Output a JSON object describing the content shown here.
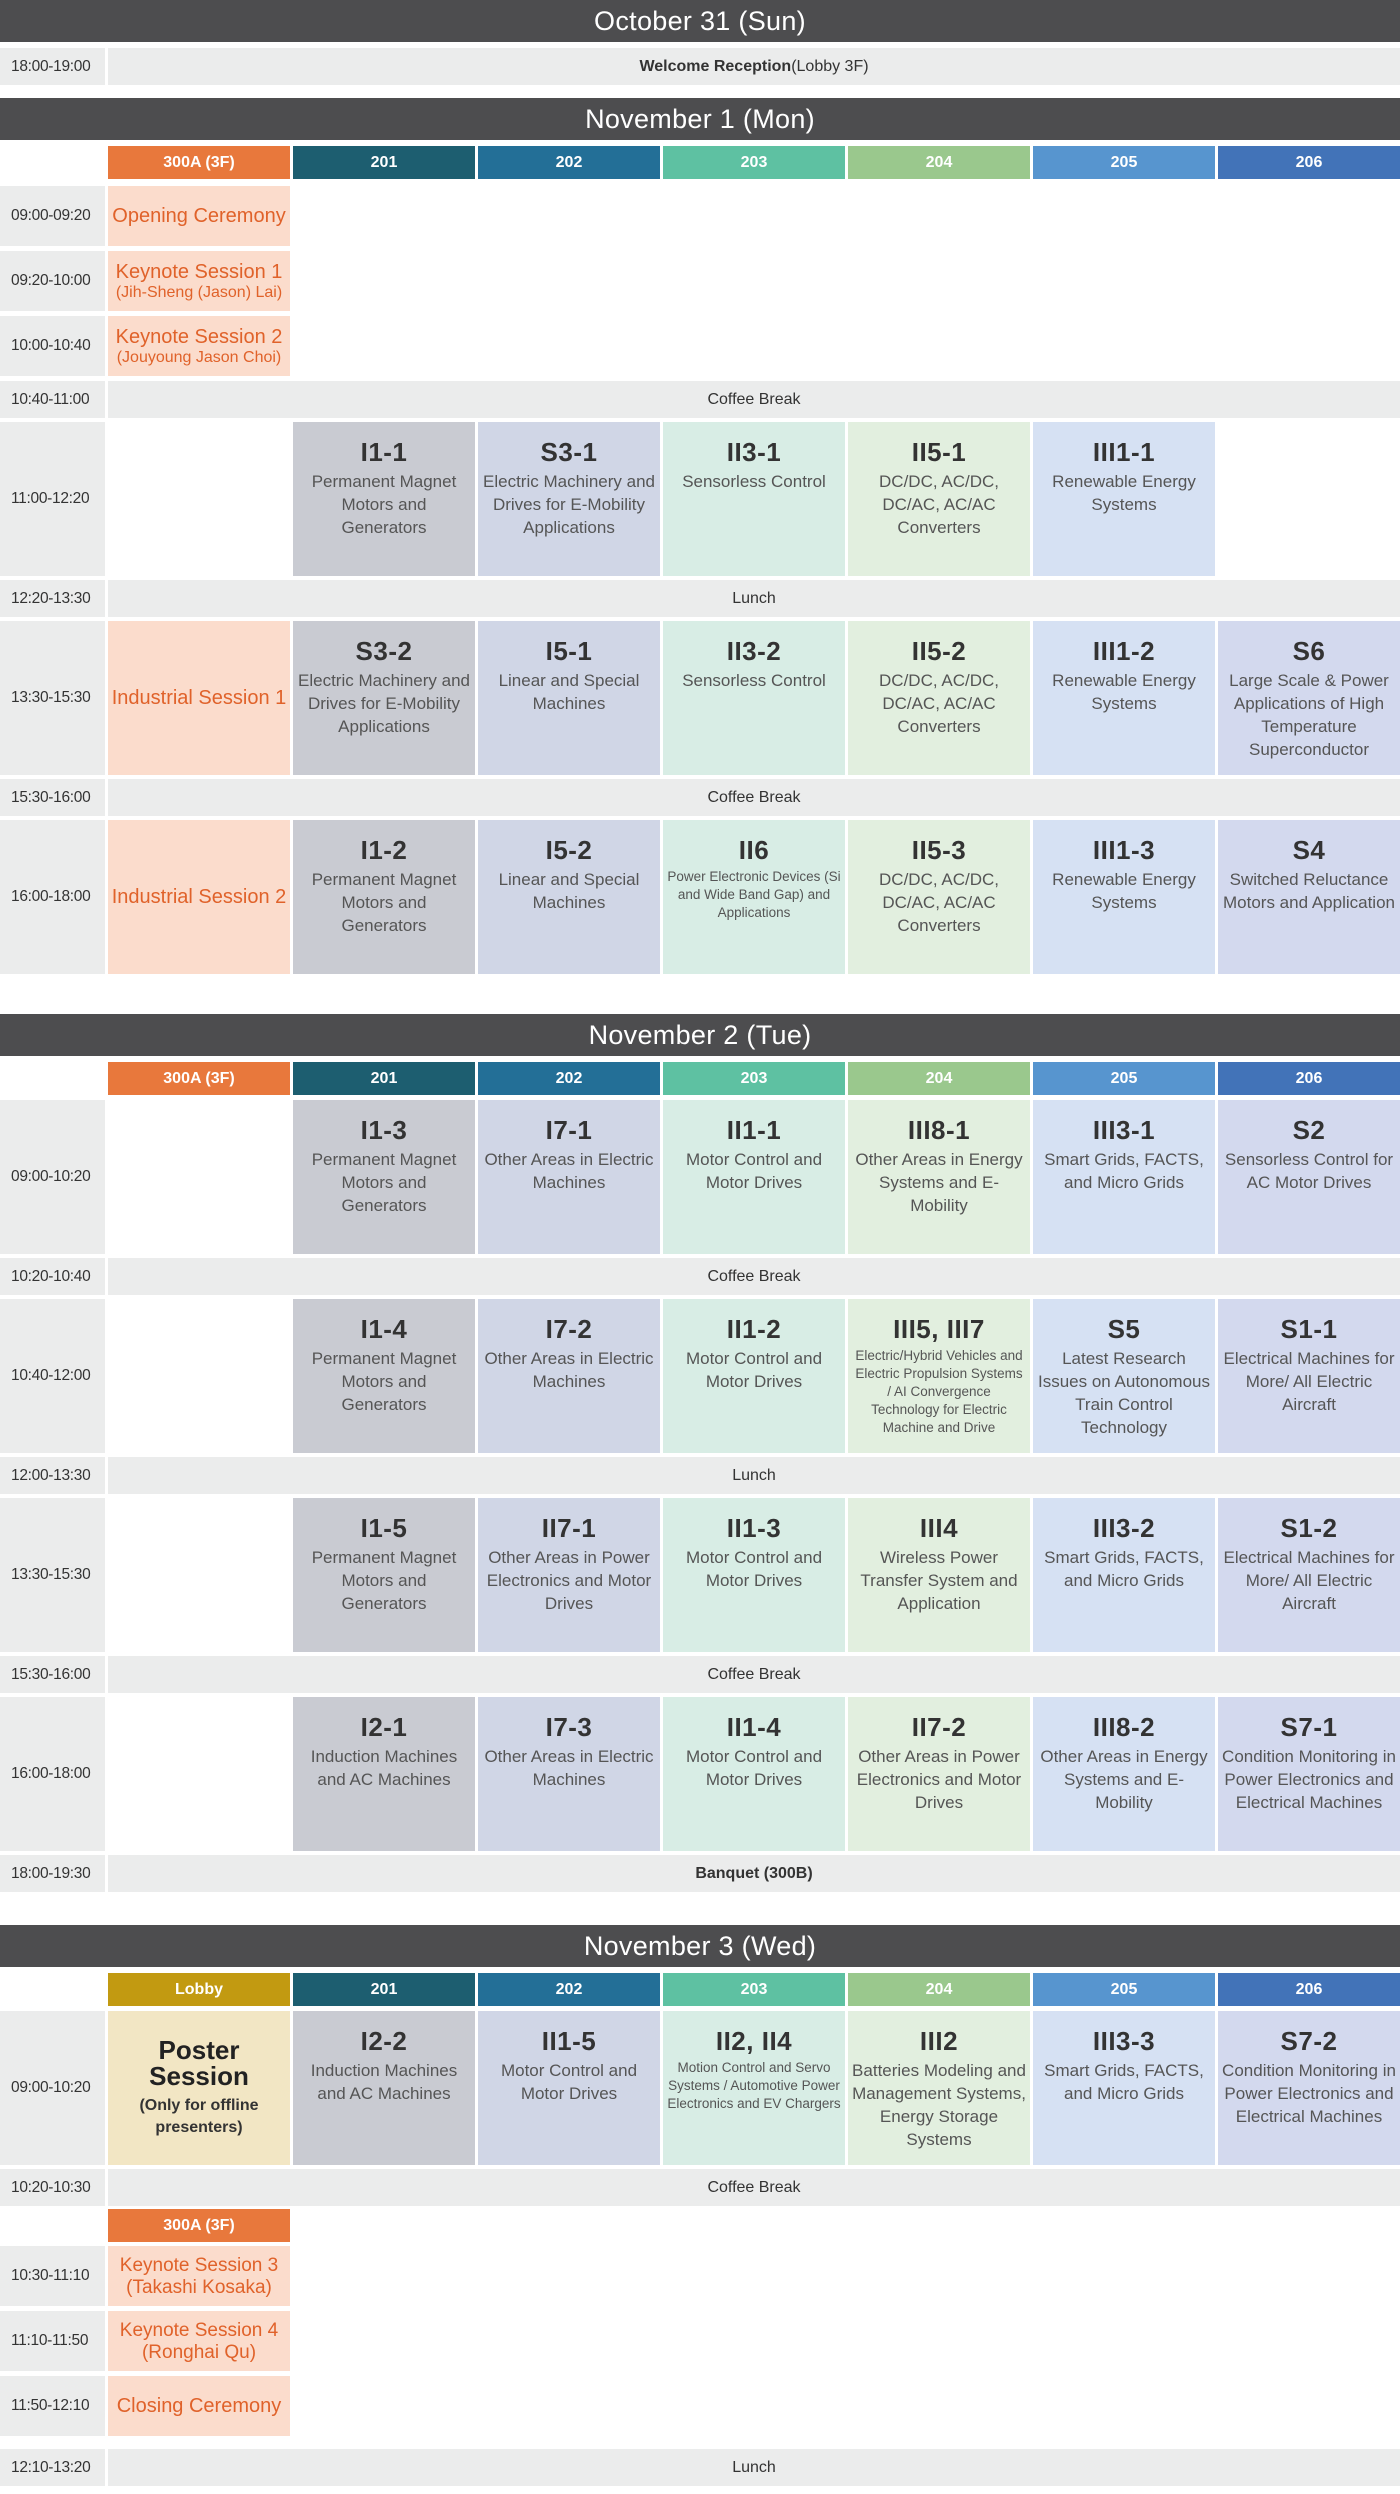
{
  "colors": {
    "day_header": "#4d4d4f",
    "hall": "#e8783c",
    "room201": "#1d5e70",
    "room202": "#236f97",
    "room203": "#5ec1a2",
    "room204": "#9ac88d",
    "room205": "#5795cf",
    "room206": "#4273b8",
    "lobby": "#c29a11"
  },
  "oct31": {
    "title": "October 31 (Sun)",
    "time": "18:00-19:00",
    "event_bold": "Welcome Reception",
    "event_rest": " (Lobby 3F)"
  },
  "nov1": {
    "title": "November 1 (Mon)",
    "rooms": [
      "300A (3F)",
      "201",
      "202",
      "203",
      "204",
      "205",
      "206"
    ],
    "t1": "09:00-09:20",
    "opening": "Opening Ceremony",
    "t2": "09:20-10:00",
    "keynote1": "Keynote Session 1",
    "keynote1_speaker": "(Jih-Sheng (Jason) Lai)",
    "t3": "10:00-10:40",
    "keynote2": "Keynote Session 2",
    "keynote2_speaker": "(Jouyoung Jason Choi)",
    "t4": "10:40-11:00",
    "coffee1": "Coffee Break",
    "t5": "11:00-12:20",
    "s5": [
      {
        "code": "I1-1",
        "desc": "Permanent Magnet Motors and Generators"
      },
      {
        "code": "S3-1",
        "desc": "Electric Machinery and Drives for E-Mobility Applications"
      },
      {
        "code": "II3-1",
        "desc": "Sensorless Control"
      },
      {
        "code": "II5-1",
        "desc": "DC/DC, AC/DC, DC/AC, AC/AC Converters"
      },
      {
        "code": "III1-1",
        "desc": "Renewable Energy Systems"
      }
    ],
    "t6": "12:20-13:30",
    "lunch": "Lunch",
    "t7": "13:30-15:30",
    "industrial1": "Industrial Session 1",
    "s7": [
      {
        "code": "S3-2",
        "desc": "Electric Machinery and Drives for E-Mobility Applications"
      },
      {
        "code": "I5-1",
        "desc": "Linear and Special Machines"
      },
      {
        "code": "II3-2",
        "desc": "Sensorless Control"
      },
      {
        "code": "II5-2",
        "desc": "DC/DC, AC/DC, DC/AC, AC/AC Converters"
      },
      {
        "code": "III1-2",
        "desc": "Renewable Energy Systems"
      },
      {
        "code": "S6",
        "desc": "Large Scale & Power Applications of High Temperature Superconductor"
      }
    ],
    "t8": "15:30-16:00",
    "coffee2": "Coffee Break",
    "t9": "16:00-18:00",
    "industrial2": "Industrial Session 2",
    "s9": [
      {
        "code": "I1-2",
        "desc": "Permanent Magnet Motors and Generators"
      },
      {
        "code": "I5-2",
        "desc": "Linear and Special Machines"
      },
      {
        "code": "II6",
        "desc": "Power Electronic Devices (Si and Wide Band Gap) and Applications"
      },
      {
        "code": "II5-3",
        "desc": "DC/DC, AC/DC, DC/AC, AC/AC Converters"
      },
      {
        "code": "III1-3",
        "desc": "Renewable Energy Systems"
      },
      {
        "code": "S4",
        "desc": "Switched Reluctance Motors and Application"
      }
    ]
  },
  "nov2": {
    "title": "November 2 (Tue)",
    "rooms": [
      "300A (3F)",
      "201",
      "202",
      "203",
      "204",
      "205",
      "206"
    ],
    "t1": "09:00-10:20",
    "s1": [
      {
        "code": "I1-3",
        "desc": "Permanent Magnet Motors and Generators"
      },
      {
        "code": "I7-1",
        "desc": "Other Areas in Electric Machines"
      },
      {
        "code": "II1-1",
        "desc": "Motor Control and Motor Drives"
      },
      {
        "code": "III8-1",
        "desc": "Other Areas in Energy Systems and E-Mobility"
      },
      {
        "code": "III3-1",
        "desc": "Smart Grids, FACTS, and Micro Grids"
      },
      {
        "code": "S2",
        "desc": "Sensorless Control for AC Motor Drives"
      }
    ],
    "t2": "10:20-10:40",
    "coffee1": "Coffee Break",
    "t3": "10:40-12:00",
    "s3": [
      {
        "code": "I1-4",
        "desc": "Permanent Magnet Motors and Generators"
      },
      {
        "code": "I7-2",
        "desc": "Other Areas in Electric Machines"
      },
      {
        "code": "II1-2",
        "desc": "Motor Control and Motor Drives"
      },
      {
        "code": "III5, III7",
        "desc": "Electric/Hybrid Vehicles and Electric Propulsion Systems / AI Convergence Technology for Electric Machine and Drive"
      },
      {
        "code": "S5",
        "desc": "Latest Research Issues on Autonomous Train Control Technology"
      },
      {
        "code": "S1-1",
        "desc": "Electrical Machines for More/ All Electric Aircraft"
      }
    ],
    "t4": "12:00-13:30",
    "lunch": "Lunch",
    "t5": "13:30-15:30",
    "s5": [
      {
        "code": "I1-5",
        "desc": "Permanent Magnet Motors and Generators"
      },
      {
        "code": "II7-1",
        "desc": "Other Areas in Power Electronics and Motor Drives"
      },
      {
        "code": "II1-3",
        "desc": "Motor Control and Motor Drives"
      },
      {
        "code": "III4",
        "desc": "Wireless Power Transfer System and Application"
      },
      {
        "code": "III3-2",
        "desc": "Smart Grids, FACTS, and Micro Grids"
      },
      {
        "code": "S1-2",
        "desc": "Electrical Machines for More/ All Electric Aircraft"
      }
    ],
    "t6": "15:30-16:00",
    "coffee2": "Coffee Break",
    "t7": "16:00-18:00",
    "s7": [
      {
        "code": "I2-1",
        "desc": "Induction Machines and AC Machines"
      },
      {
        "code": "I7-3",
        "desc": "Other Areas in Electric Machines"
      },
      {
        "code": "II1-4",
        "desc": "Motor Control and Motor Drives"
      },
      {
        "code": "II7-2",
        "desc": "Other Areas in Power Electronics and Motor Drives"
      },
      {
        "code": "III8-2",
        "desc": "Other Areas in Energy Systems and E-Mobility"
      },
      {
        "code": "S7-1",
        "desc": "Condition Monitoring in Power Electronics and Electrical Machines"
      }
    ],
    "t8": "18:00-19:30",
    "banquet": "Banquet (300B)"
  },
  "nov3": {
    "title": "November 3 (Wed)",
    "rooms": [
      "Lobby",
      "201",
      "202",
      "203",
      "204",
      "205",
      "206"
    ],
    "t1": "09:00-10:20",
    "poster": "Poster Session",
    "poster_note": "(Only for offline presenters)",
    "s1": [
      {
        "code": "I2-2",
        "desc": "Induction Machines and AC Machines"
      },
      {
        "code": "II1-5",
        "desc": "Motor Control and Motor Drives"
      },
      {
        "code": "II2, II4",
        "desc": "Motion Control and Servo Systems / Automotive Power Electronics and EV Chargers"
      },
      {
        "code": "III2",
        "desc": "Batteries Modeling and Management Systems, Energy Storage Systems"
      },
      {
        "code": "III3-3",
        "desc": "Smart Grids, FACTS, and Micro Grids"
      },
      {
        "code": "S7-2",
        "desc": "Condition Monitoring in Power Electronics and Electrical Machines"
      }
    ],
    "t2": "10:20-10:30",
    "coffee": "Coffee Break",
    "hall": "300A (3F)",
    "t3": "10:30-11:10",
    "keynote3": "Keynote Session 3",
    "keynote3_speaker": "(Takashi Kosaka)",
    "t4": "11:10-11:50",
    "keynote4": "Keynote Session 4",
    "keynote4_speaker": "(Ronghai Qu)",
    "t5": "11:50-12:10",
    "closing": "Closing Ceremony",
    "t6": "12:10-13:20",
    "lunch": "Lunch"
  }
}
